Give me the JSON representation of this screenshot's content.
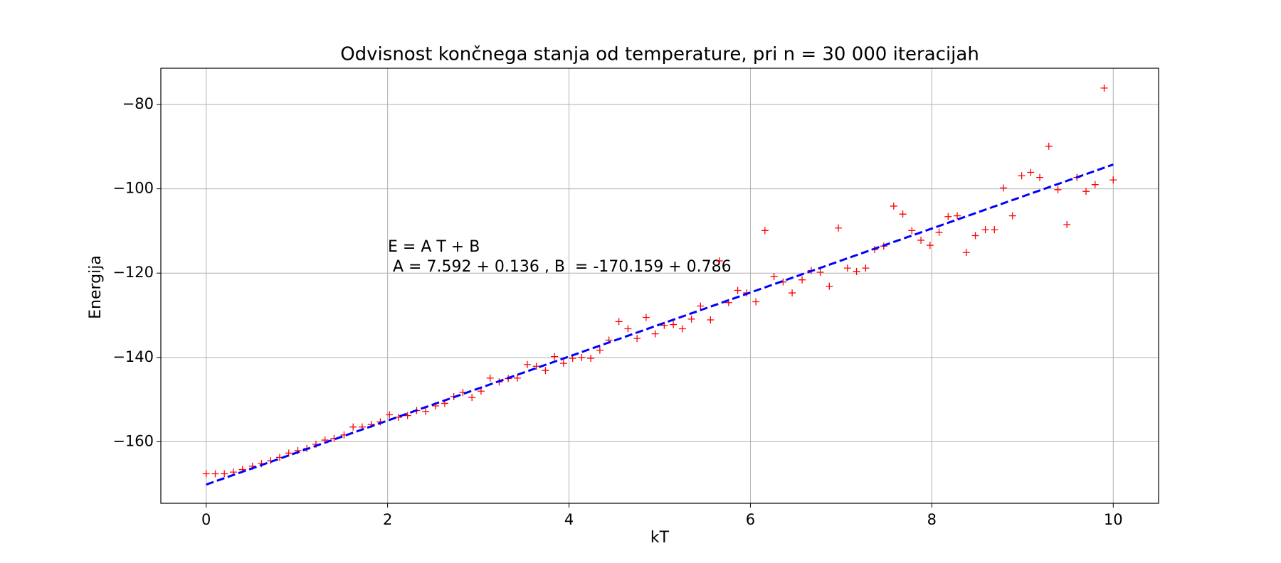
{
  "chart_data": {
    "type": "scatter",
    "title": "Odvisnost končnega stanja od temperature, pri n = 30 000 iteracijah",
    "xlabel": "kT",
    "ylabel": "Energija",
    "annotations": [
      "E = A T + B",
      " A = 7.592 + 0.136 , B  = -170.159 + 0.786"
    ],
    "grid": true,
    "xlim": [
      -0.5,
      10.5
    ],
    "ylim": [
      -174.6,
      -71.4
    ],
    "xticks": [
      0,
      2,
      4,
      6,
      8,
      10
    ],
    "yticks": [
      {
        "value": -160,
        "label": "−160"
      },
      {
        "value": -140,
        "label": "−140"
      },
      {
        "value": -120,
        "label": "−120"
      },
      {
        "value": -100,
        "label": "−100"
      },
      {
        "value": -80,
        "label": "−80"
      }
    ],
    "series": [
      {
        "color": "#ff0000",
        "marker": "+",
        "x": [
          0,
          0.1,
          0.2,
          0.3,
          0.4,
          0.51,
          0.61,
          0.71,
          0.81,
          0.91,
          1.01,
          1.11,
          1.21,
          1.31,
          1.41,
          1.52,
          1.62,
          1.72,
          1.82,
          1.92,
          2.02,
          2.12,
          2.22,
          2.32,
          2.42,
          2.53,
          2.63,
          2.73,
          2.83,
          2.93,
          3.03,
          3.13,
          3.23,
          3.33,
          3.43,
          3.54,
          3.64,
          3.74,
          3.84,
          3.94,
          4.04,
          4.14,
          4.24,
          4.34,
          4.44,
          4.55,
          4.65,
          4.75,
          4.85,
          4.95,
          5.05,
          5.15,
          5.25,
          5.35,
          5.45,
          5.56,
          5.66,
          5.76,
          5.86,
          5.96,
          6.06,
          6.16,
          6.26,
          6.36,
          6.46,
          6.57,
          6.67,
          6.77,
          6.87,
          6.97,
          7.07,
          7.17,
          7.27,
          7.37,
          7.47,
          7.58,
          7.68,
          7.78,
          7.88,
          7.98,
          8.08,
          8.18,
          8.28,
          8.38,
          8.48,
          8.59,
          8.69,
          8.79,
          8.89,
          8.99,
          9.09,
          9.19,
          9.29,
          9.39,
          9.49,
          9.6,
          9.7,
          9.8,
          9.9,
          10
        ],
        "values": [
          -167.6,
          -167.6,
          -167.6,
          -167.2,
          -166.6,
          -165.8,
          -165.2,
          -164.5,
          -163.7,
          -162.7,
          -162.1,
          -161.6,
          -160.6,
          -159.6,
          -159.2,
          -158.4,
          -156.5,
          -156.5,
          -155.9,
          -155.3,
          -153.6,
          -154.2,
          -153.8,
          -152.6,
          -152.8,
          -151.5,
          -150.9,
          -149.3,
          -148.3,
          -149.5,
          -148.0,
          -144.9,
          -145.8,
          -145.0,
          -144.9,
          -141.7,
          -142.1,
          -143.1,
          -139.8,
          -141.4,
          -140.2,
          -140.0,
          -140.2,
          -138.3,
          -135.9,
          -131.5,
          -133.2,
          -135.5,
          -130.5,
          -134.4,
          -132.4,
          -132.2,
          -133.2,
          -130.9,
          -127.8,
          -131.1,
          -117.1,
          -127.0,
          -124.1,
          -124.7,
          -126.8,
          -109.9,
          -120.8,
          -122.1,
          -124.7,
          -121.6,
          -119.4,
          -119.8,
          -123.1,
          -109.3,
          -118.8,
          -119.6,
          -118.8,
          -114.4,
          -113.6,
          -104.1,
          -106.0,
          -109.9,
          -112.2,
          -113.4,
          -110.3,
          -106.6,
          -106.4,
          -115.1,
          -111.1,
          -109.7,
          -109.7,
          -99.8,
          -106.4,
          -96.9,
          -96.1,
          -97.3,
          -89.9,
          -100.2,
          -108.5,
          -97.3,
          -100.6,
          -99.0,
          -76.1,
          -97.9
        ]
      },
      {
        "color": "#0000ff",
        "line": "dashed",
        "x": [
          0,
          10
        ],
        "values": [
          -170.159,
          -94.239
        ]
      }
    ]
  }
}
